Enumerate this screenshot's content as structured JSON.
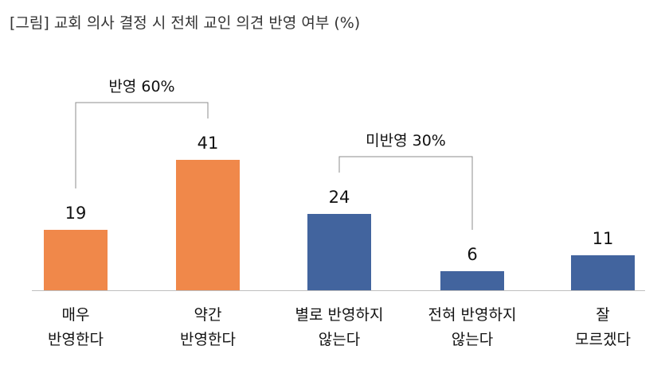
{
  "title": "[그림] 교회 의사 결정 시 전체 교인 의견 반영 여부 (%)",
  "colors": {
    "reflect": "#F0884A",
    "not_reflect": "#42649E",
    "bracket": "#8C8C8C",
    "axis": "#BFBFBF"
  },
  "chart_data": {
    "type": "bar",
    "categories": [
      [
        "매우",
        "반영한다"
      ],
      [
        "약간",
        "반영한다"
      ],
      [
        "별로 반영하지",
        "않는다"
      ],
      [
        "전혀 반영하지",
        "않는다"
      ],
      [
        "잘",
        "모르겠다"
      ]
    ],
    "values": [
      19,
      41,
      24,
      6,
      11
    ],
    "bar_colors": [
      "#F0884A",
      "#F0884A",
      "#42649E",
      "#42649E",
      "#42649E"
    ],
    "groups": [
      {
        "label": "반영 60%",
        "from": 0,
        "to": 1
      },
      {
        "label": "미반영 30%",
        "from": 2,
        "to": 3
      }
    ],
    "ylim": [
      0,
      45
    ],
    "grid": false,
    "legend": "none"
  }
}
